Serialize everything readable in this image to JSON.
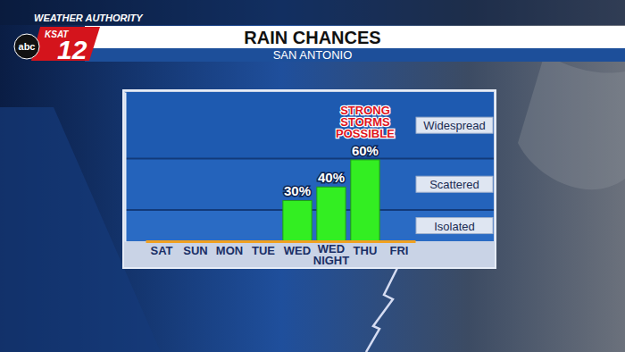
{
  "header": {
    "brand": "WEATHER AUTHORITY",
    "station": "KSAT",
    "channel": "12",
    "network": "abc"
  },
  "chart_data": {
    "type": "bar",
    "title": "RAIN CHANCES",
    "subtitle": "SAN ANTONIO",
    "categories": [
      "SAT",
      "SUN",
      "MON",
      "TUE",
      "WED",
      "WED NIGHT",
      "THU",
      "FRI"
    ],
    "values": [
      null,
      null,
      null,
      null,
      30,
      40,
      60,
      null
    ],
    "value_labels": [
      null,
      null,
      null,
      null,
      "30%",
      "40%",
      "60%",
      null
    ],
    "color": "#33ee22",
    "ylim": [
      0,
      110
    ],
    "data_labels": true,
    "tick_labels": "x",
    "grid": false,
    "bands": [
      {
        "label": "Isolated",
        "from": 0,
        "to": 23
      },
      {
        "label": "Scattered",
        "from": 23,
        "to": 61
      },
      {
        "label": "Widespread",
        "from": 61,
        "to": 110
      }
    ],
    "annotation": {
      "lines": [
        "STRONG",
        "STORMS",
        "POSSIBLE"
      ],
      "category": "THU"
    }
  }
}
